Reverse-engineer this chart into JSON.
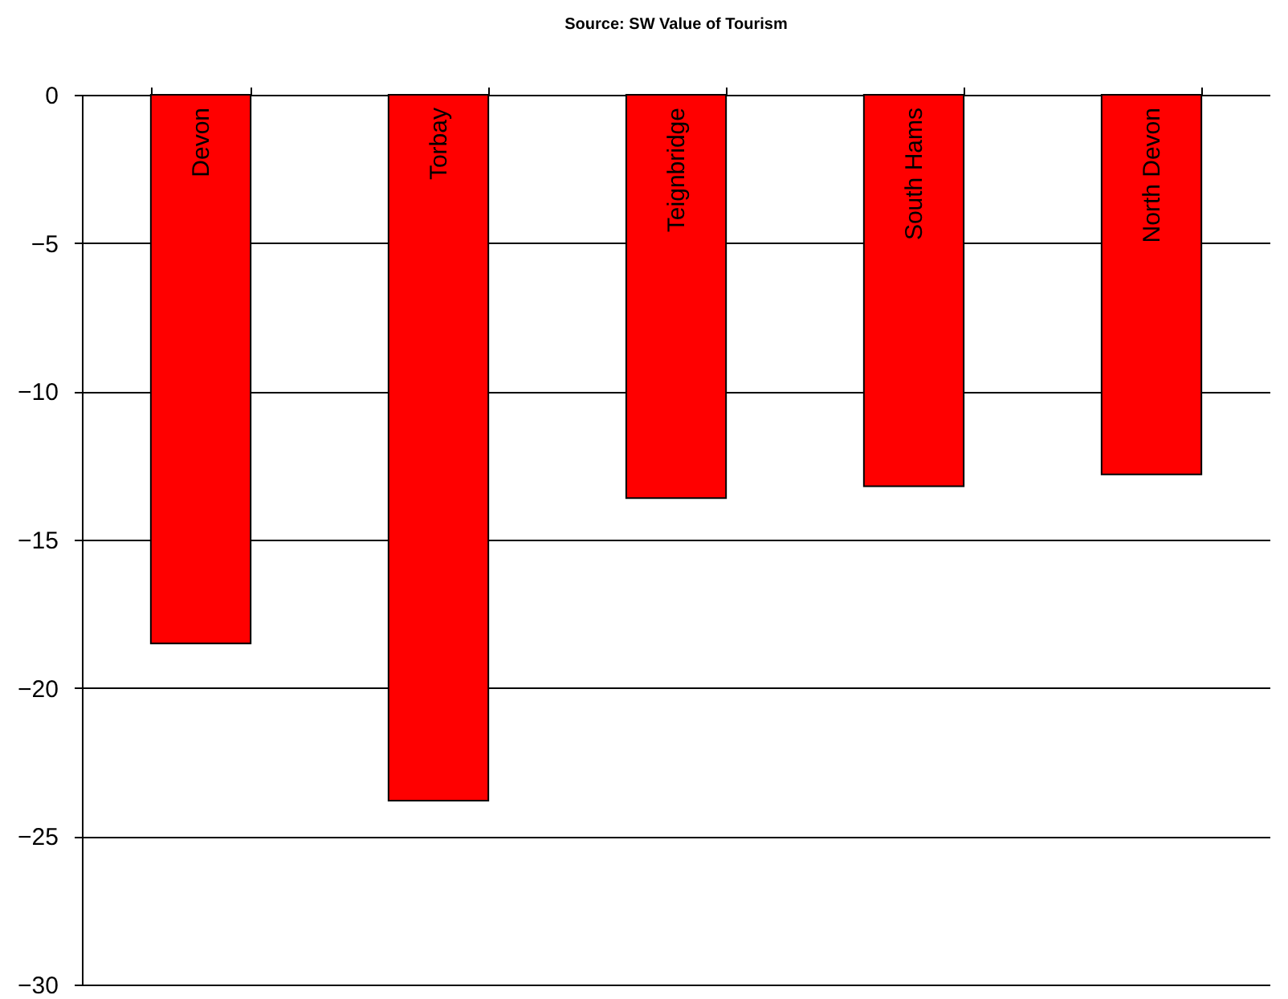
{
  "chart_data": {
    "type": "bar",
    "title": "Source: SW Value of Tourism",
    "categories": [
      "Devon",
      "Torbay",
      "Teignbridge",
      "South Hams",
      "North Devon"
    ],
    "values": [
      -18.5,
      -23.8,
      -13.6,
      -13.2,
      -12.8
    ],
    "color": "#ff0000",
    "ylim": [
      -30,
      0
    ],
    "yticks": [
      -30,
      -25,
      -20,
      -15,
      -10,
      -5,
      0
    ],
    "grid": "y"
  }
}
